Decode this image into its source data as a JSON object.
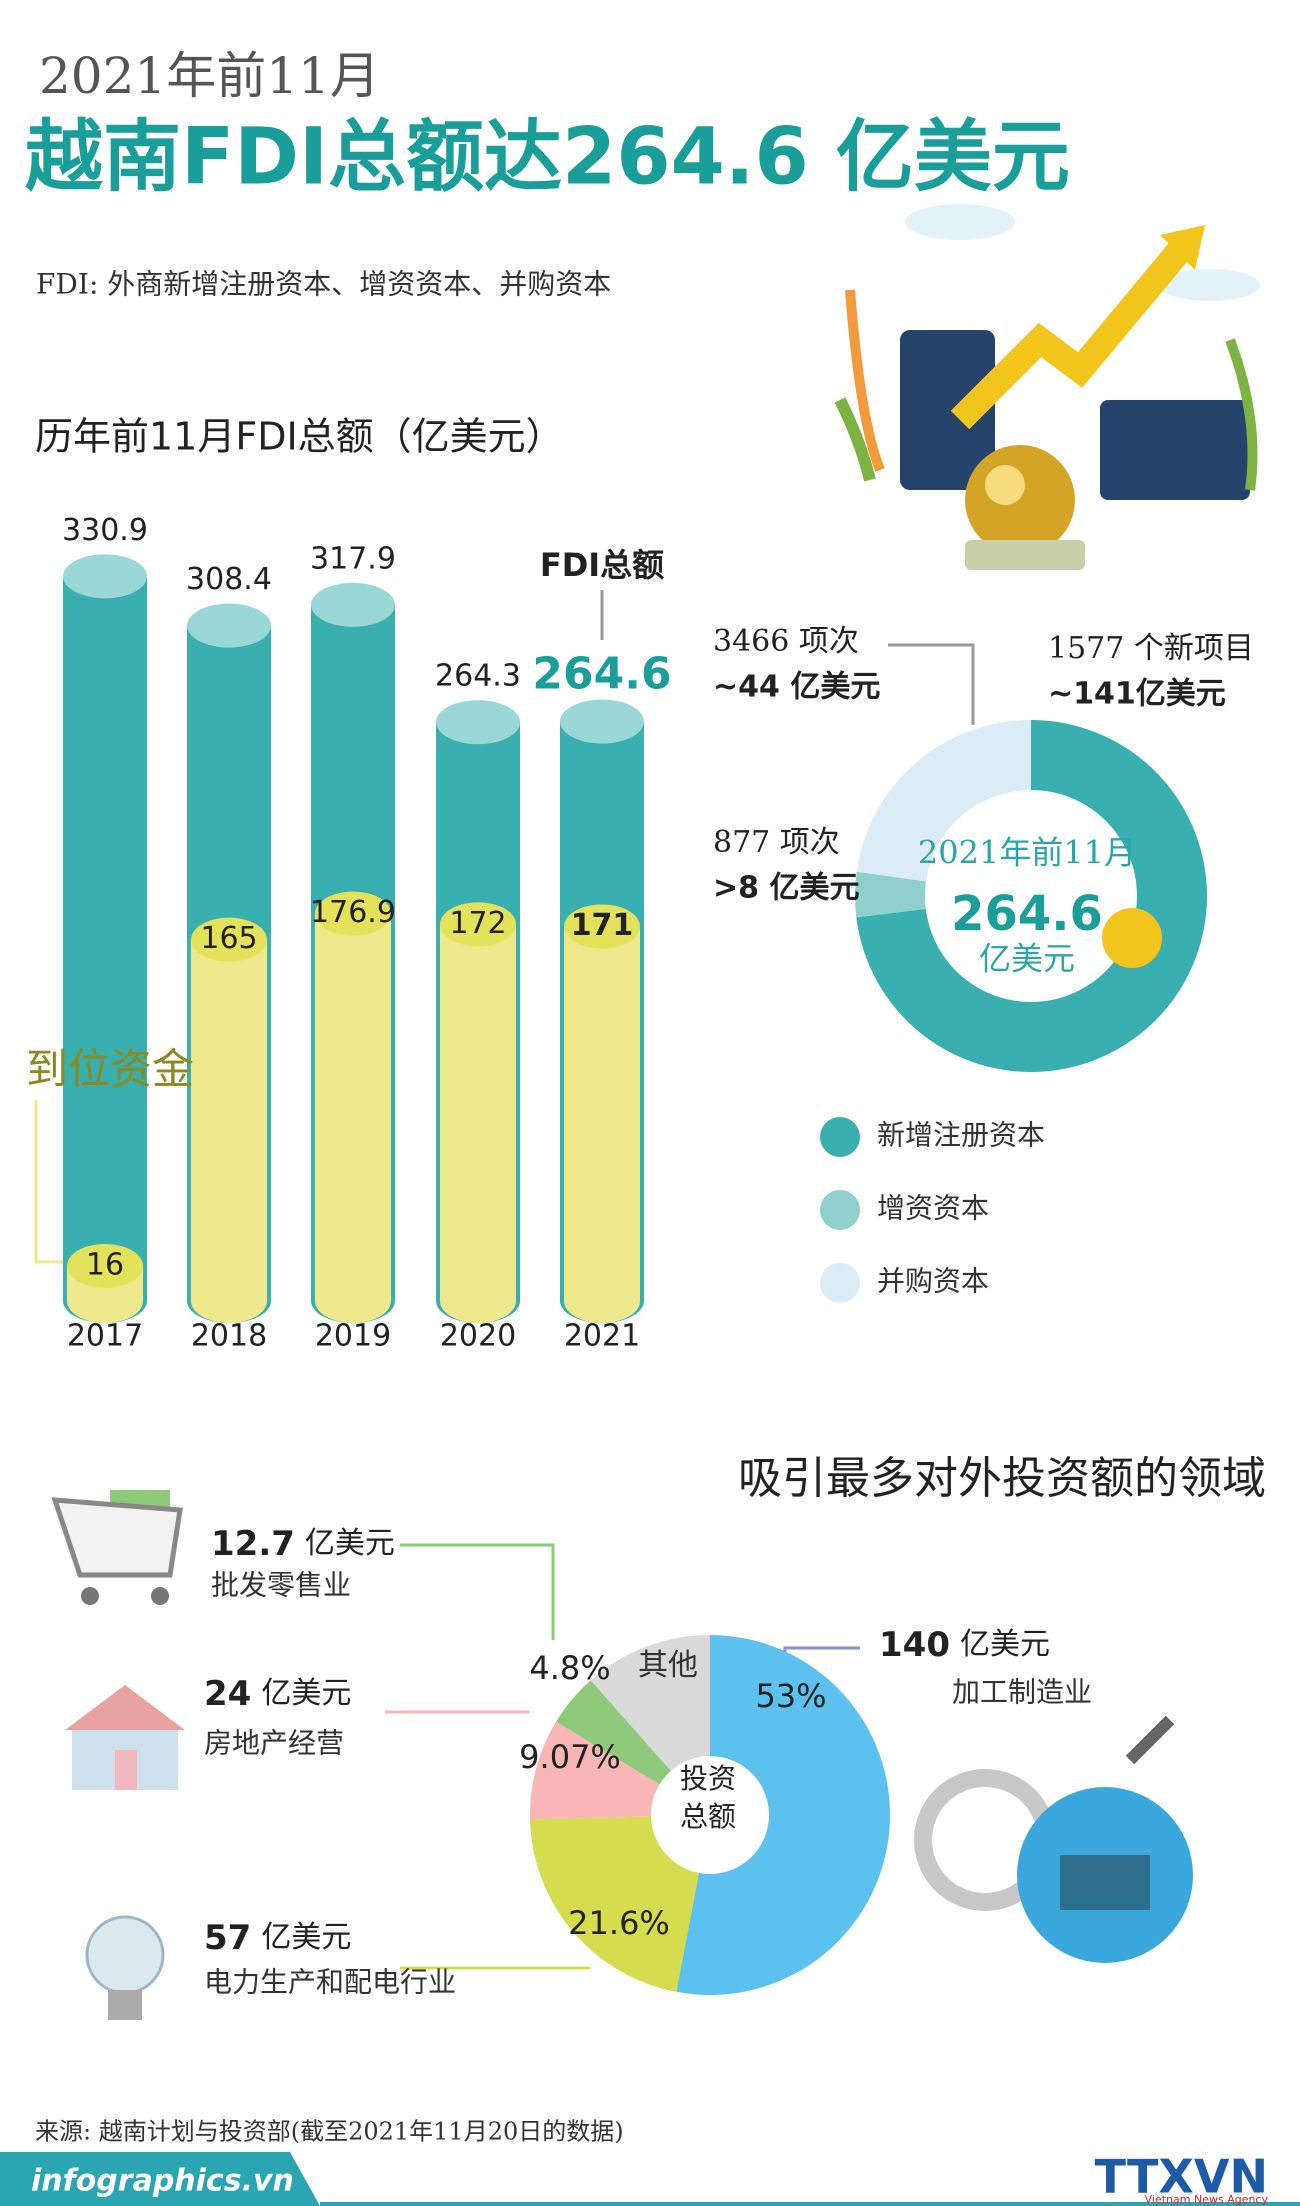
{
  "header": {
    "kicker": "2021年前11月",
    "title": "越南FDI总额达264.6 亿美元",
    "note": "FDI: 外商新增注册资本、增资资本、并购资本"
  },
  "chart_data": [
    {
      "type": "bar",
      "title": "历年前11月FDI总额（亿美元）",
      "categories": [
        "2017",
        "2018",
        "2019",
        "2020",
        "2021"
      ],
      "series": [
        {
          "name": "FDI总额",
          "color": "#3aafb0",
          "values": [
            330.9,
            308.4,
            317.9,
            264.3,
            264.6
          ]
        },
        {
          "name": "到位资金",
          "color": "#eee98c",
          "values": [
            16,
            165,
            176.9,
            172,
            171
          ]
        }
      ]
    },
    {
      "type": "donut",
      "categories": [
        "新增注册资本",
        "增资资本",
        "并购资本"
      ],
      "colors": [
        "#3aafb0",
        "#8fd0cc",
        "#dcecf6"
      ],
      "values": [
        141,
        8,
        44
      ],
      "value_labels": [
        "~141亿美元",
        ">8 亿美元",
        "~44 亿美元"
      ],
      "count_labels": [
        "1577 个新项目",
        "877 项次",
        "3466 项次"
      ],
      "center": {
        "period": "2021年前11月",
        "total": 264.6,
        "unit": "亿美元"
      }
    },
    {
      "type": "donut",
      "title": "吸引最多对外投资额的领域",
      "center_lines": [
        "投资",
        "总额"
      ],
      "categories": [
        "加工制造业",
        "电力生产和配电行业",
        "房地产经营",
        "批发零售业",
        "其他"
      ],
      "colors": [
        "#5cc1ef",
        "#d5dc4d",
        "#f9b6b6",
        "#8ec97c",
        "#dadada"
      ],
      "values": [
        53,
        21.6,
        9.07,
        4.8,
        11.53
      ],
      "value_labels": [
        "53%",
        "21.6%",
        "9.07%",
        "4.8%",
        null
      ],
      "amounts": [
        140,
        57,
        24,
        12.7,
        null
      ],
      "amount_unit": "亿美元"
    }
  ],
  "footer": {
    "source": "来源: 越南计划与投资部(截至2021年11月20日的数据)",
    "site": "infographics.vn",
    "agency": "TTXVN",
    "agency_sub": "Vietnam News Agency"
  }
}
